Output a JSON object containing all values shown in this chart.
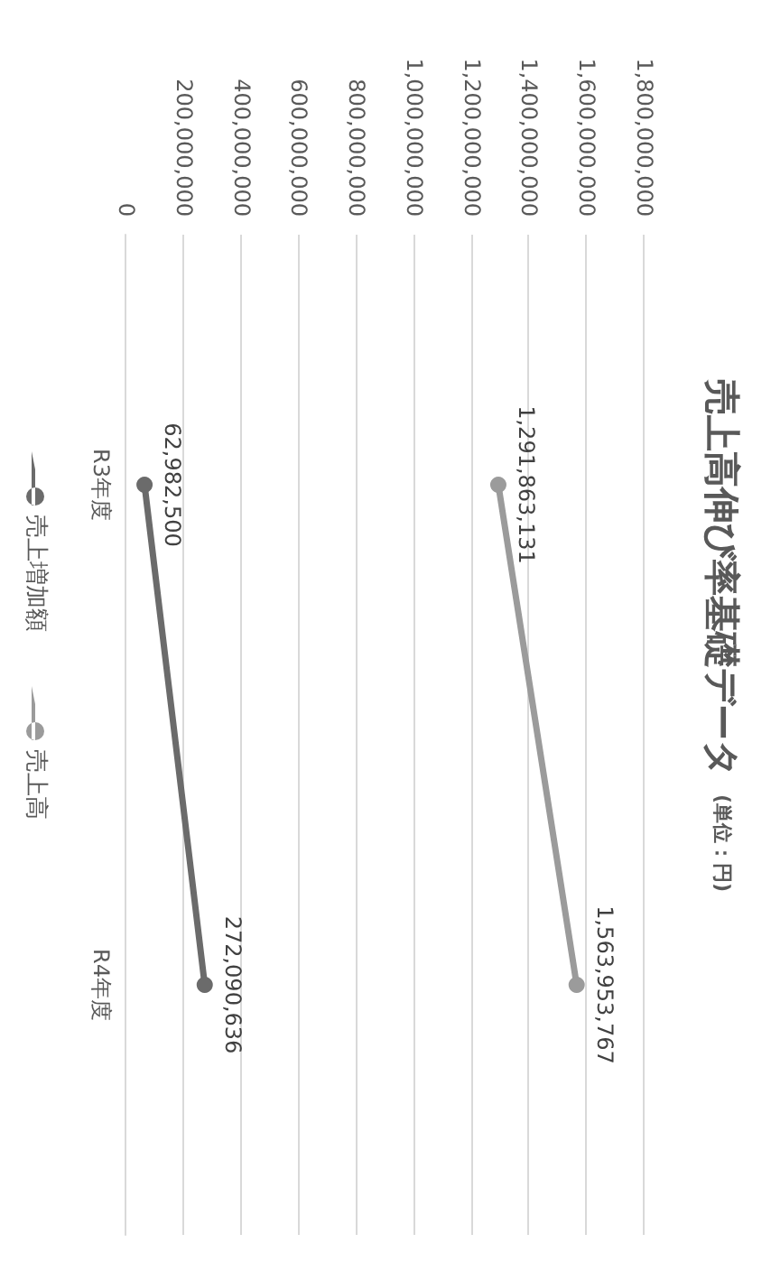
{
  "chart_data": {
    "type": "line",
    "title": "売上高伸び率基礎データ",
    "subtitle": "(単位：円)",
    "categories": [
      "R3年度",
      "R4年度"
    ],
    "series": [
      {
        "name": "売上増加額",
        "color": "#6b6b6b",
        "values": [
          62982500,
          272090636
        ],
        "value_labels": [
          "62,982,500",
          "272,090,636"
        ]
      },
      {
        "name": "売上高",
        "color": "#9b9b9b",
        "values": [
          1291863131,
          1563953767
        ],
        "value_labels": [
          "1,291,863,131",
          "1,563,953,767"
        ]
      }
    ],
    "orientation": "horizontal",
    "xlim": [
      0,
      1800000000
    ],
    "xticks": [
      {
        "value": 0,
        "label": "0"
      },
      {
        "value": 200000000,
        "label": "200,000,000"
      },
      {
        "value": 400000000,
        "label": "400,000,000"
      },
      {
        "value": 600000000,
        "label": "600,000,000"
      },
      {
        "value": 800000000,
        "label": "800,000,000"
      },
      {
        "value": 1000000000,
        "label": "1,000,000,000"
      },
      {
        "value": 1200000000,
        "label": "1,200,000,000"
      },
      {
        "value": 1400000000,
        "label": "1,400,000,000"
      },
      {
        "value": 1600000000,
        "label": "1,600,000,000"
      },
      {
        "value": 1800000000,
        "label": "1,800,000,000"
      }
    ],
    "grid": "x",
    "legend": "left",
    "marker": "circle",
    "line_style": "solid"
  }
}
